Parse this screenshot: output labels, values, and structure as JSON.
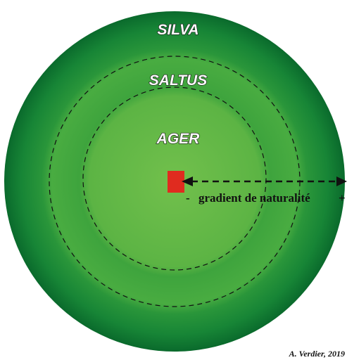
{
  "zones": [
    "SILVA",
    "SALTUS",
    "AGER"
  ],
  "gradient": {
    "label": "gradient de naturalité",
    "minus": "-",
    "plus": "+"
  },
  "credit": "A. Verdier, 2019"
}
